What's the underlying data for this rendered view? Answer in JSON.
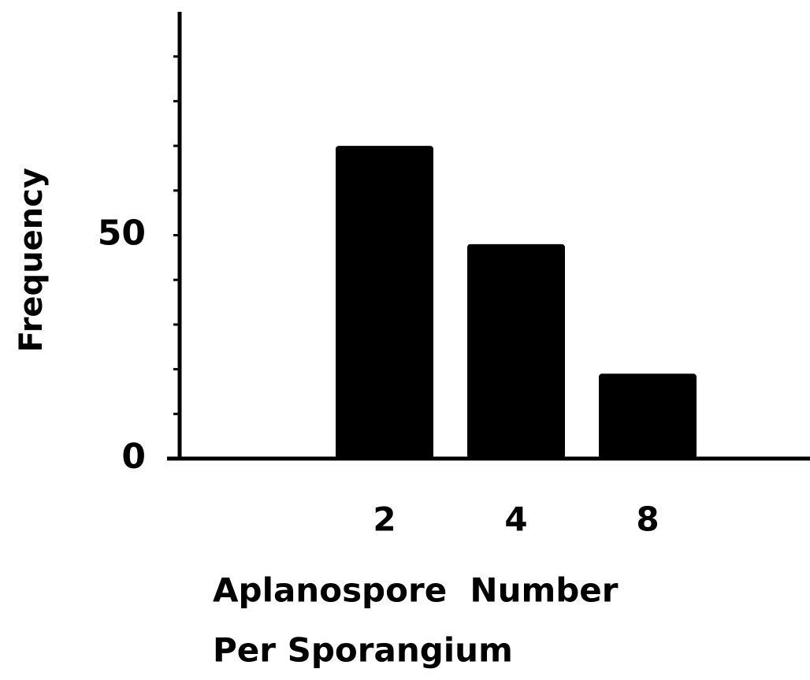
{
  "chart_data": {
    "type": "bar",
    "categories": [
      "2",
      "4",
      "8"
    ],
    "values": [
      70,
      48,
      19
    ],
    "color": "#000000",
    "ylabel": "Frequency",
    "xlabel": [
      "Aplanospore  Number",
      "Per Sporangium"
    ],
    "ylim": [
      0,
      100
    ],
    "yticks": [
      0,
      50
    ],
    "minor_yticks": [
      10,
      20,
      30,
      40,
      60,
      70,
      80,
      90
    ],
    "grid": false
  }
}
